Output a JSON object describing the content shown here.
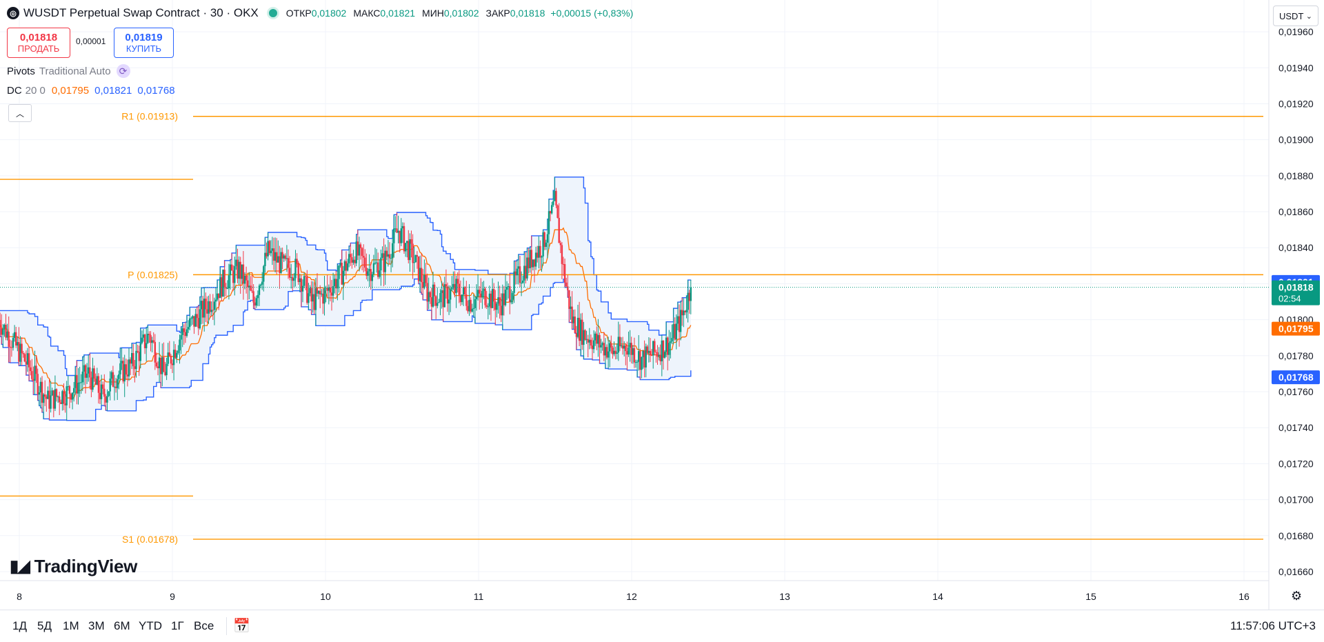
{
  "header": {
    "title": "WUSDT Perpetual Swap Contract · 30 · OKX",
    "ohlc": [
      {
        "label": "ОТКР",
        "value": "0,01802"
      },
      {
        "label": "МАКС",
        "value": "0,01821"
      },
      {
        "label": "МИН",
        "value": "0,01802"
      },
      {
        "label": "ЗАКР",
        "value": "0,01818"
      }
    ],
    "change": "+0,00015 (+0,83%)"
  },
  "trade": {
    "sell_price": "0,01818",
    "sell_label": "ПРОДАТЬ",
    "spread": "0,00001",
    "buy_price": "0,01819",
    "buy_label": "КУПИТЬ"
  },
  "indicators": {
    "pivots_name": "Pivots",
    "pivots_params": "Traditional Auto",
    "dc_name": "DC",
    "dc_params": "20 0",
    "dc_mid": "0,01795",
    "dc_upper": "0,01821",
    "dc_lower": "0,01768"
  },
  "currency_select": {
    "value": "USDT"
  },
  "ranges": [
    "1Д",
    "5Д",
    "1М",
    "3М",
    "6М",
    "YTD",
    "1Г",
    "Все"
  ],
  "clock": "11:57:06 UTC+3",
  "logo_text": "TradingView",
  "colors": {
    "up": "#089981",
    "down": "#f23645",
    "pivot": "#ff9800",
    "dc_band": "#2962ff",
    "dc_mid": "#ff6d00",
    "dc_fill": "#eef4fc"
  },
  "chart_data": {
    "type": "candlestick",
    "ylim": [
      0.01655,
      0.0197
    ],
    "y_ticks": [
      "0,01960",
      "0,01940",
      "0,01920",
      "0,01900",
      "0,01880",
      "0,01860",
      "0,01840",
      "0,01820",
      "0,01800",
      "0,01780",
      "0,01760",
      "0,01740",
      "0,01720",
      "0,01700",
      "0,01680",
      "0,01660"
    ],
    "x_ticks": [
      "8",
      "9",
      "10",
      "11",
      "12",
      "13",
      "14",
      "15",
      "16"
    ],
    "price_labels": [
      {
        "text": "0,01821",
        "value": 0.01821,
        "color": "#2962ff"
      },
      {
        "text": "0,01818",
        "sub": "02:54",
        "value": 0.01818,
        "color": "#089981"
      },
      {
        "text": "0,01795",
        "value": 0.01795,
        "color": "#ff6d00"
      },
      {
        "text": "0,01768",
        "value": 0.01768,
        "color": "#2962ff"
      }
    ],
    "pivot_levels": [
      {
        "label": "R1 (0.01913)",
        "value": 0.01913
      },
      {
        "label": "P (0.01825)",
        "value": 0.01825
      },
      {
        "label": "S1 (0.01678)",
        "value": 0.01678
      }
    ],
    "prior_period_levels": [
      0.01878,
      0.01702
    ],
    "last_price": 0.01818,
    "series": [
      {
        "name": "WUSDT",
        "type": "candlestick",
        "interval": "30",
        "keypoints": [
          [
            0,
            0.018
          ],
          [
            20,
            0.01775
          ],
          [
            34,
            0.01755
          ],
          [
            48,
            0.0176
          ],
          [
            62,
            0.0177
          ],
          [
            72,
            0.01757
          ],
          [
            80,
            0.01768
          ],
          [
            92,
            0.01775
          ],
          [
            104,
            0.01792
          ],
          [
            114,
            0.0177
          ],
          [
            126,
            0.01792
          ],
          [
            136,
            0.018
          ],
          [
            146,
            0.0181
          ],
          [
            156,
            0.01822
          ],
          [
            166,
            0.01828
          ],
          [
            176,
            0.0181
          ],
          [
            186,
            0.01838
          ],
          [
            196,
            0.0183
          ],
          [
            206,
            0.01828
          ],
          [
            216,
            0.0181
          ],
          [
            226,
            0.01815
          ],
          [
            236,
            0.01825
          ],
          [
            246,
            0.01838
          ],
          [
            256,
            0.01828
          ],
          [
            266,
            0.01832
          ],
          [
            276,
            0.0185
          ],
          [
            286,
            0.01835
          ],
          [
            296,
            0.01815
          ],
          [
            306,
            0.01812
          ],
          [
            316,
            0.01817
          ],
          [
            326,
            0.0181
          ],
          [
            336,
            0.01814
          ],
          [
            346,
            0.01808
          ],
          [
            356,
            0.0182
          ],
          [
            366,
            0.01832
          ],
          [
            376,
            0.01842
          ],
          [
            384,
            0.01865
          ],
          [
            390,
            0.01828
          ],
          [
            396,
            0.018
          ],
          [
            404,
            0.01792
          ],
          [
            414,
            0.01787
          ],
          [
            424,
            0.01782
          ],
          [
            434,
            0.01786
          ],
          [
            444,
            0.01778
          ],
          [
            454,
            0.01782
          ],
          [
            464,
            0.01788
          ],
          [
            472,
            0.01802
          ],
          [
            478,
            0.01818
          ]
        ]
      }
    ]
  }
}
